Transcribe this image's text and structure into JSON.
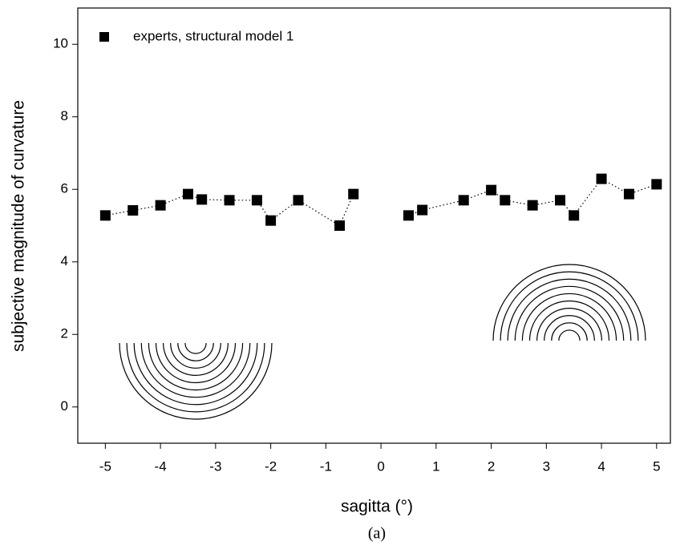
{
  "chart_data": {
    "type": "line",
    "x_label": "sagitta (°)",
    "y_label": "subjective magnitude of curvature",
    "caption": "(a)",
    "x": [
      -5,
      -4.5,
      -4,
      -3.5,
      -3.25,
      -2.75,
      -2.25,
      -2,
      -1.5,
      -0.75,
      -0.5,
      0,
      0.5,
      0.75,
      1.5,
      2,
      2.25,
      2.75,
      3.25,
      3.5,
      4,
      4.5,
      5
    ],
    "series": [
      {
        "name": "experts, structural model 1",
        "color": "#000000",
        "values": [
          5.28,
          5.42,
          5.56,
          5.87,
          5.72,
          5.7,
          5.7,
          5.14,
          5.7,
          5.0,
          5.87,
          null,
          5.28,
          5.43,
          5.7,
          5.98,
          5.7,
          5.56,
          5.7,
          5.28,
          6.29,
          5.87,
          6.14
        ]
      }
    ],
    "xlim": [
      -5.5,
      5.25
    ],
    "xticks": [
      -5,
      -4,
      -3,
      -2,
      -1,
      0,
      1,
      2,
      3,
      4,
      5
    ],
    "ylim": [
      -1,
      11
    ],
    "yticks": [
      0,
      2,
      4,
      6,
      8,
      10
    ],
    "legend": "upper left",
    "grid": false
  }
}
